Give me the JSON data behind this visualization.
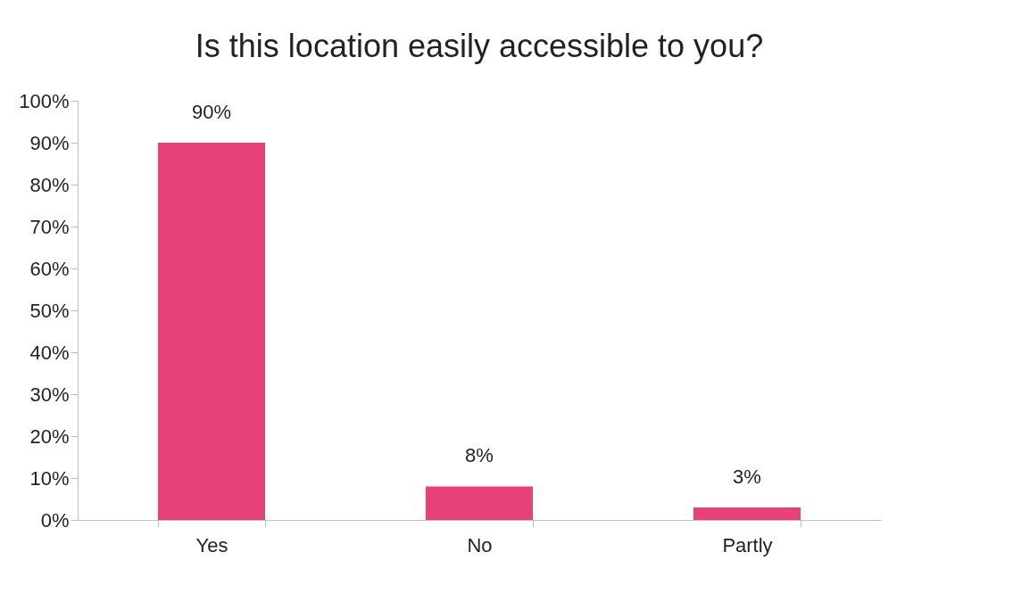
{
  "chart_data": {
    "type": "bar",
    "title": "Is this location easily accessible to you?",
    "categories": [
      "Yes",
      "No",
      "Partly"
    ],
    "values": [
      90,
      8,
      3
    ],
    "value_labels": [
      "90%",
      "8%",
      "3%"
    ],
    "color": "#e8417a",
    "ylim": [
      0,
      100
    ],
    "yticks": [
      {
        "value": 0,
        "label": "0%"
      },
      {
        "value": 10,
        "label": "10%"
      },
      {
        "value": 20,
        "label": "20%"
      },
      {
        "value": 30,
        "label": "30%"
      },
      {
        "value": 40,
        "label": "40%"
      },
      {
        "value": 50,
        "label": "50%"
      },
      {
        "value": 60,
        "label": "60%"
      },
      {
        "value": 70,
        "label": "70%"
      },
      {
        "value": 80,
        "label": "80%"
      },
      {
        "value": 90,
        "label": "90%"
      },
      {
        "value": 100,
        "label": "100%"
      }
    ],
    "grid": false
  }
}
